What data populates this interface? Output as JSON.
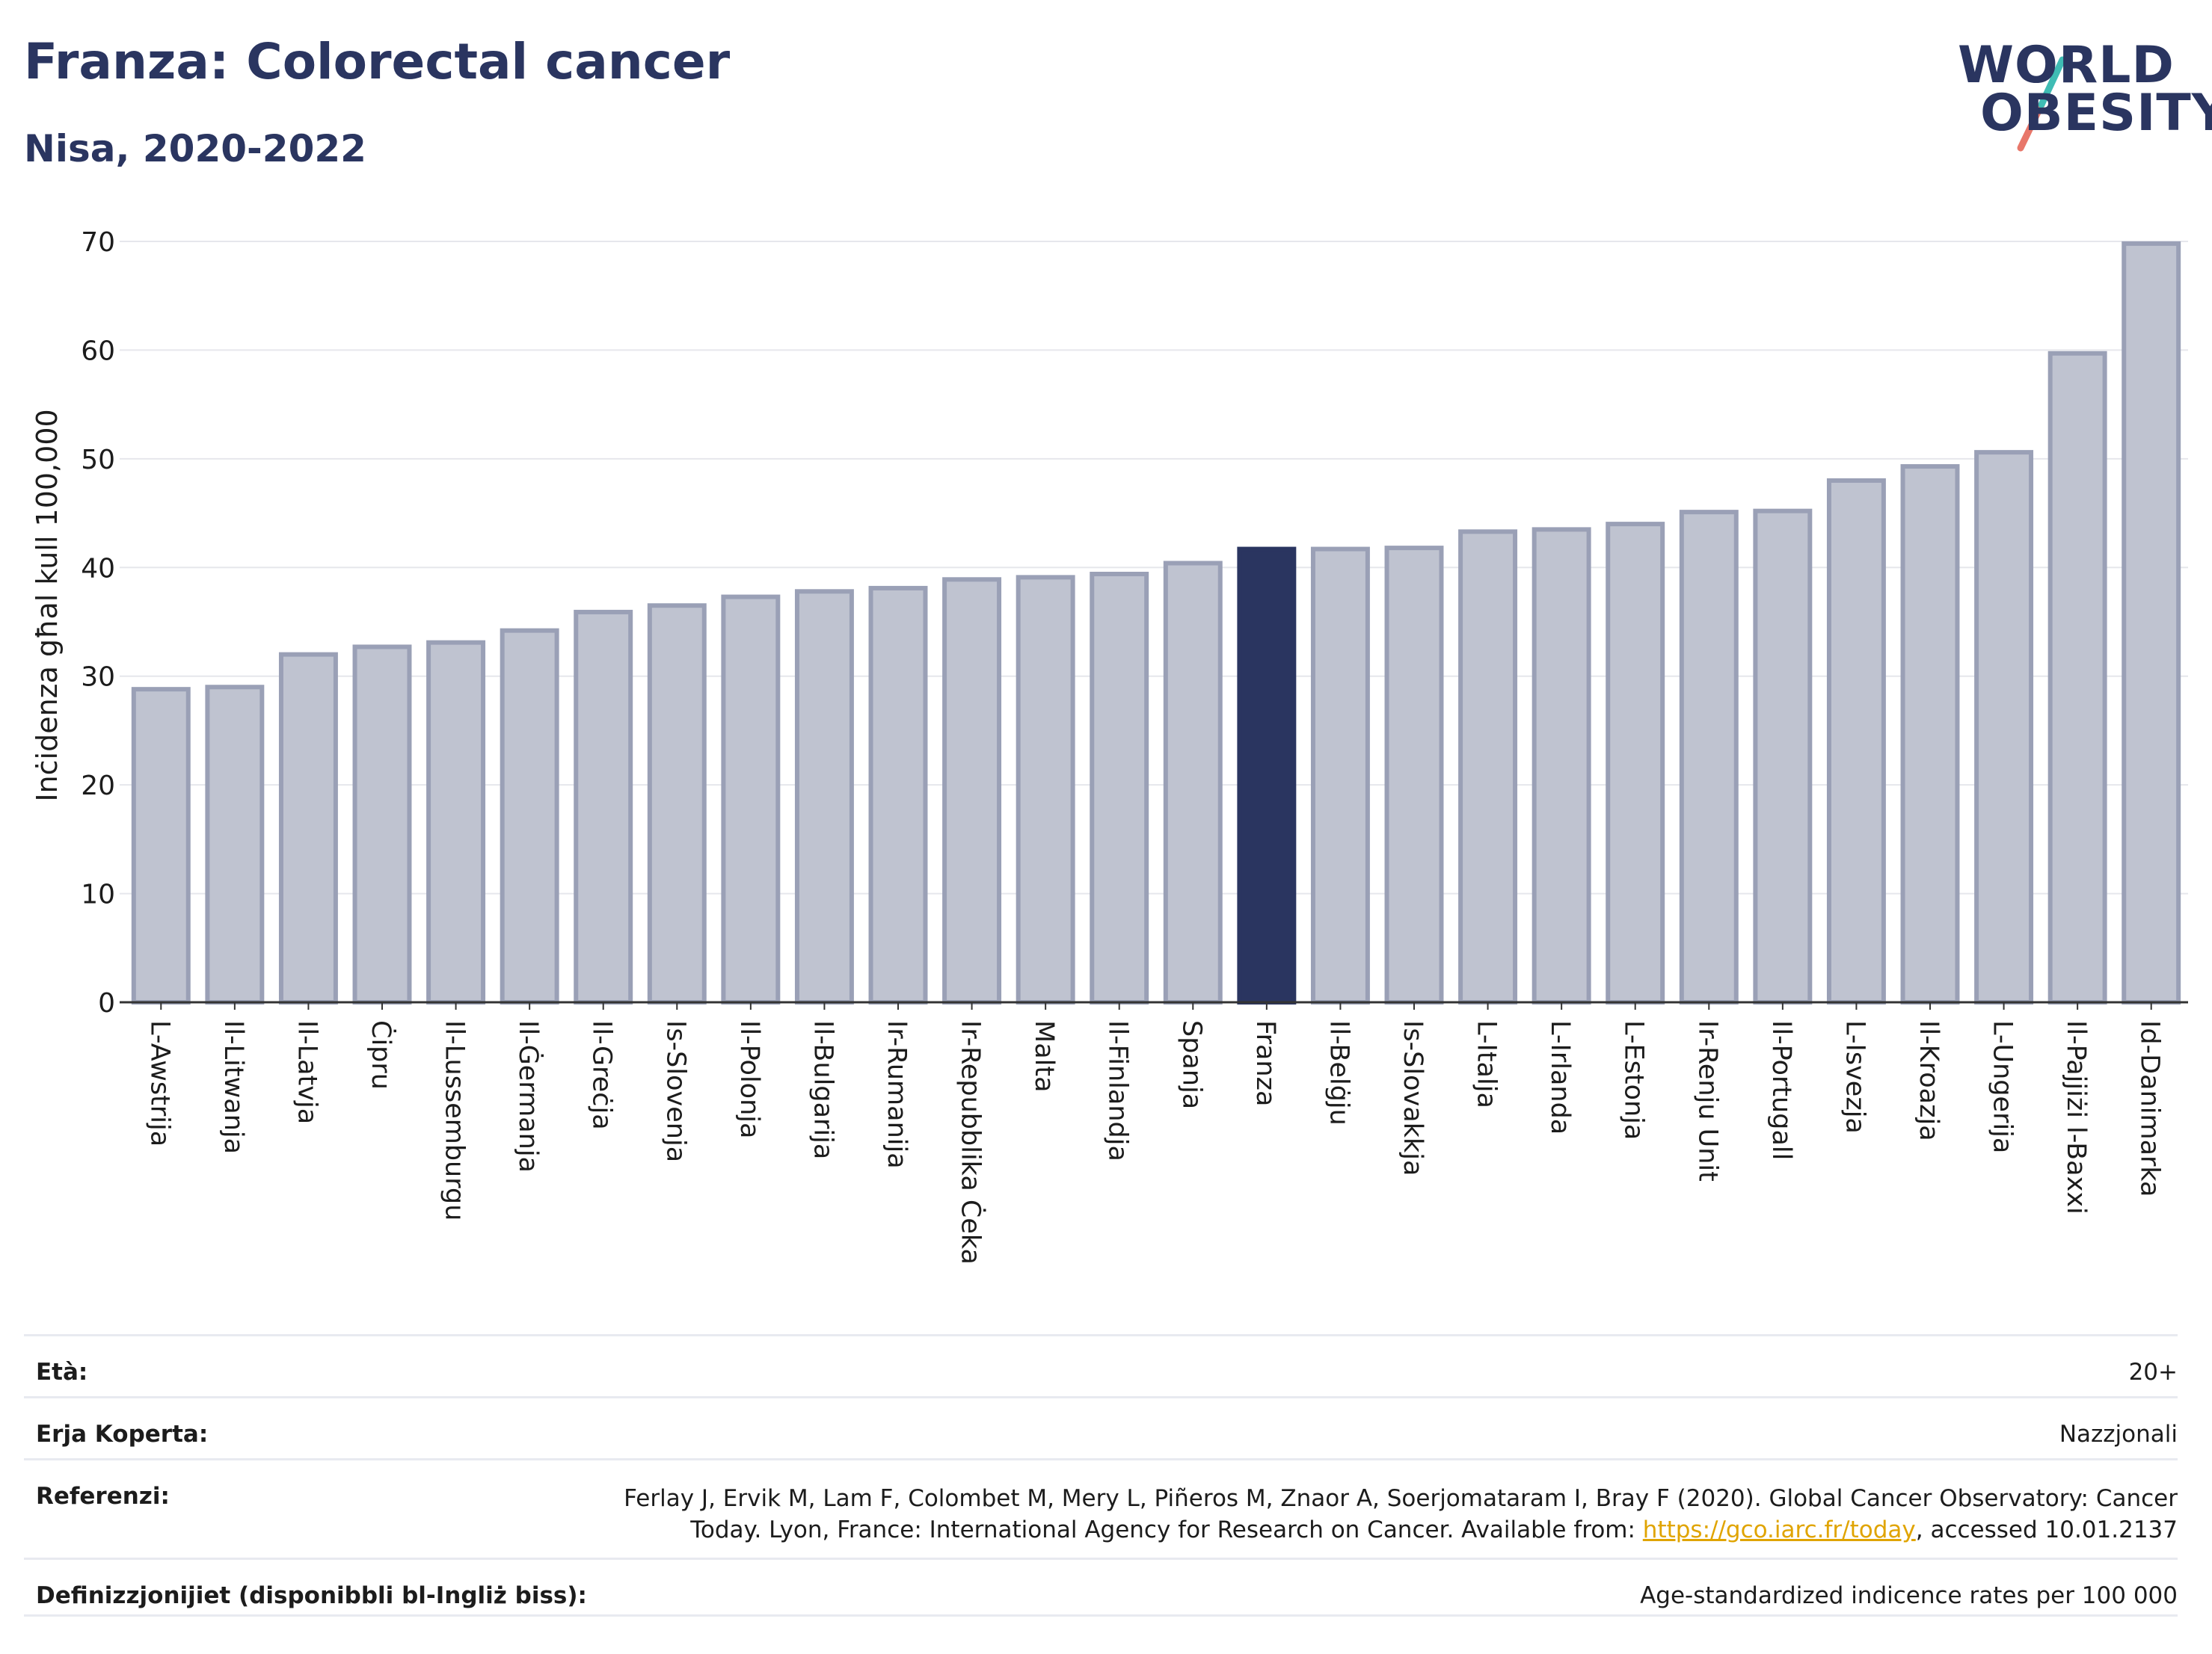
{
  "header": {
    "title": "Franza: Colorectal cancer",
    "subtitle": "Nisa, 2020-2022"
  },
  "logo": {
    "line1": "WORLD",
    "line2": "OBESITY"
  },
  "chart_data": {
    "type": "bar",
    "ylabel": "Inċidenza għal kull 100,000",
    "ylim": [
      0,
      70
    ],
    "yticks": [
      0,
      10,
      20,
      30,
      40,
      50,
      60,
      70
    ],
    "grid": true,
    "highlight": "Franza",
    "colors": {
      "bar": "#bfc3d0",
      "bar_edge": "#9aa0b6",
      "highlight": "#2a3560"
    },
    "categories": [
      "L-Awstrija",
      "Il-Litwanja",
      "Il-Latvja",
      "Ċipru",
      "Il-Lussemburgu",
      "Il-Ġermanja",
      "Il-Greċja",
      "Is-Slovenja",
      "Il-Polonja",
      "Il-Bulgarija",
      "Ir-Rumanija",
      "Ir-Repubblika Ċeka",
      "Malta",
      "Il-Finlandja",
      "Spanja",
      "Franza",
      "Il-Belġju",
      "Is-Slovakkja",
      "L-Italja",
      "L-Irlanda",
      "L-Estonja",
      "Ir-Renju Unit",
      "Il-Portugall",
      "L-Isvezja",
      "Il-Kroazja",
      "L-Ungerija",
      "Il-Pajjiżi l-Baxxi",
      "Id-Danimarka"
    ],
    "values": [
      28.8,
      29.0,
      32.0,
      32.7,
      33.1,
      34.2,
      35.9,
      36.5,
      37.3,
      37.8,
      38.1,
      38.9,
      39.1,
      39.4,
      40.4,
      41.7,
      41.7,
      41.8,
      43.3,
      43.5,
      44.0,
      45.1,
      45.2,
      48.0,
      49.3,
      50.6,
      59.7,
      69.8
    ]
  },
  "info": {
    "age_label": "Età:",
    "age_value": "20+",
    "area_label": "Erja Koperta:",
    "area_value": "Nazzjonali",
    "ref_label": "Referenzi:",
    "ref_text_1": "Ferlay J, Ervik M, Lam F, Colombet M, Mery L, Piñeros M, Znaor A, Soerjomataram I, Bray F (2020). Global Cancer Observatory: Cancer Today. Lyon, France: International Agency for Research on Cancer. Available from: ",
    "ref_link": "https://gco.iarc.fr/today",
    "ref_text_2": ", accessed 10.01.2137",
    "def_label": "Definizzjonijiet (disponibbli bl-Ingliż biss):",
    "def_value": "Age-standardized indicence rates per 100 000"
  }
}
